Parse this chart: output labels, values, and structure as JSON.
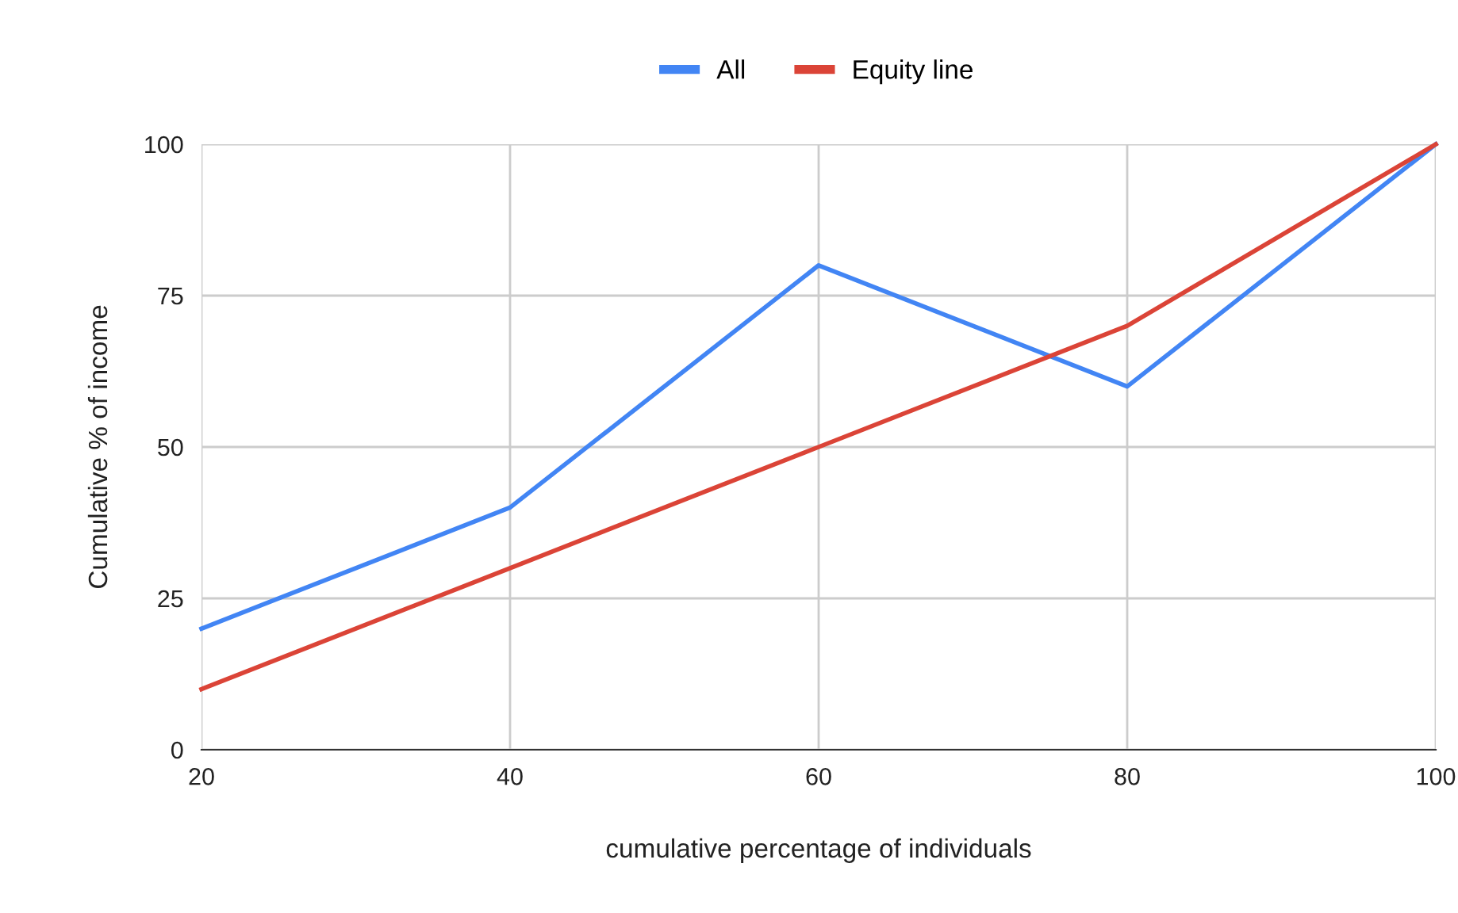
{
  "chart_data": {
    "type": "line",
    "xlabel": "cumulative percentage of individuals",
    "ylabel": "Cumulative % of income",
    "x": [
      20,
      40,
      60,
      80,
      100
    ],
    "series": [
      {
        "name": "All",
        "color": "#4285f4",
        "values": [
          20,
          40,
          80,
          60,
          100
        ]
      },
      {
        "name": "Equity line",
        "color": "#db4437",
        "values": [
          10,
          30,
          50,
          70,
          100
        ]
      }
    ],
    "xlim": [
      20,
      100
    ],
    "xticks": [
      20,
      40,
      60,
      80,
      100
    ],
    "ylim": [
      0,
      100
    ],
    "yticks": [
      0,
      25,
      50,
      75,
      100
    ],
    "grid": true,
    "legend": "top",
    "marker": "none",
    "line_style": "solid"
  }
}
